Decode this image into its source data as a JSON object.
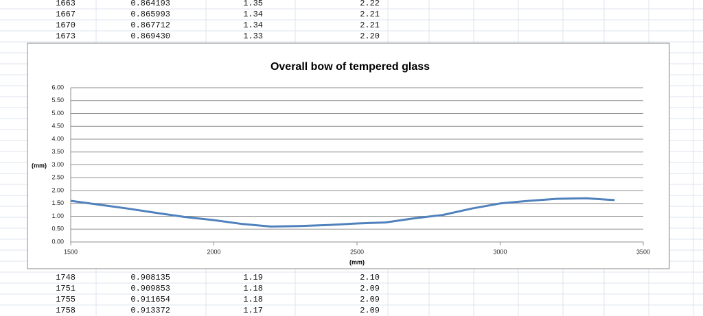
{
  "table": {
    "rows_above": [
      [
        "1663",
        "0.864193",
        "1.35",
        "2.22"
      ],
      [
        "1667",
        "0.865993",
        "1.34",
        "2.21"
      ],
      [
        "1670",
        "0.867712",
        "1.34",
        "2.21"
      ],
      [
        "1673",
        "0.869430",
        "1.33",
        "2.20"
      ]
    ],
    "rows_below": [
      [
        "1748",
        "0.908135",
        "1.19",
        "2.10"
      ],
      [
        "1751",
        "0.909853",
        "1.18",
        "2.09"
      ],
      [
        "1755",
        "0.911654",
        "1.18",
        "2.09"
      ],
      [
        "1758",
        "0.913372",
        "1.17",
        "2.09"
      ]
    ]
  },
  "chart_data": {
    "type": "line",
    "title": "Overall bow of tempered glass",
    "x_label": "(mm)",
    "y_label": "(mm)",
    "color": "#4f81bd",
    "grid": true,
    "x": [
      1500,
      1600,
      1700,
      1800,
      1900,
      2000,
      2100,
      2200,
      2300,
      2400,
      2500,
      2600,
      2700,
      2800,
      2900,
      3000,
      3100,
      3200,
      3300,
      3400
    ],
    "values": [
      1.6,
      1.45,
      1.3,
      1.13,
      0.97,
      0.85,
      0.7,
      0.6,
      0.62,
      0.66,
      0.72,
      0.76,
      0.92,
      1.05,
      1.3,
      1.5,
      1.6,
      1.68,
      1.7,
      1.63
    ],
    "xlim": [
      1500,
      3500
    ],
    "xticks": [
      1500,
      2000,
      2500,
      3000,
      3500
    ],
    "ylim": [
      0,
      6
    ],
    "yticks": [
      {
        "value": 0,
        "label": "0.00"
      },
      {
        "value": 0.5,
        "label": "0.50"
      },
      {
        "value": 1,
        "label": "1.00"
      },
      {
        "value": 1.5,
        "label": "1.50"
      },
      {
        "value": 2,
        "label": "2.00"
      },
      {
        "value": 2.5,
        "label": "2.50"
      },
      {
        "value": 3,
        "label": "3.00"
      },
      {
        "value": 3.5,
        "label": "3.50"
      },
      {
        "value": 4,
        "label": "4.00"
      },
      {
        "value": 4.5,
        "label": "4.50"
      },
      {
        "value": 5,
        "label": "5.00"
      },
      {
        "value": 5.5,
        "label": "5.50"
      },
      {
        "value": 6,
        "label": "6.00"
      }
    ]
  }
}
